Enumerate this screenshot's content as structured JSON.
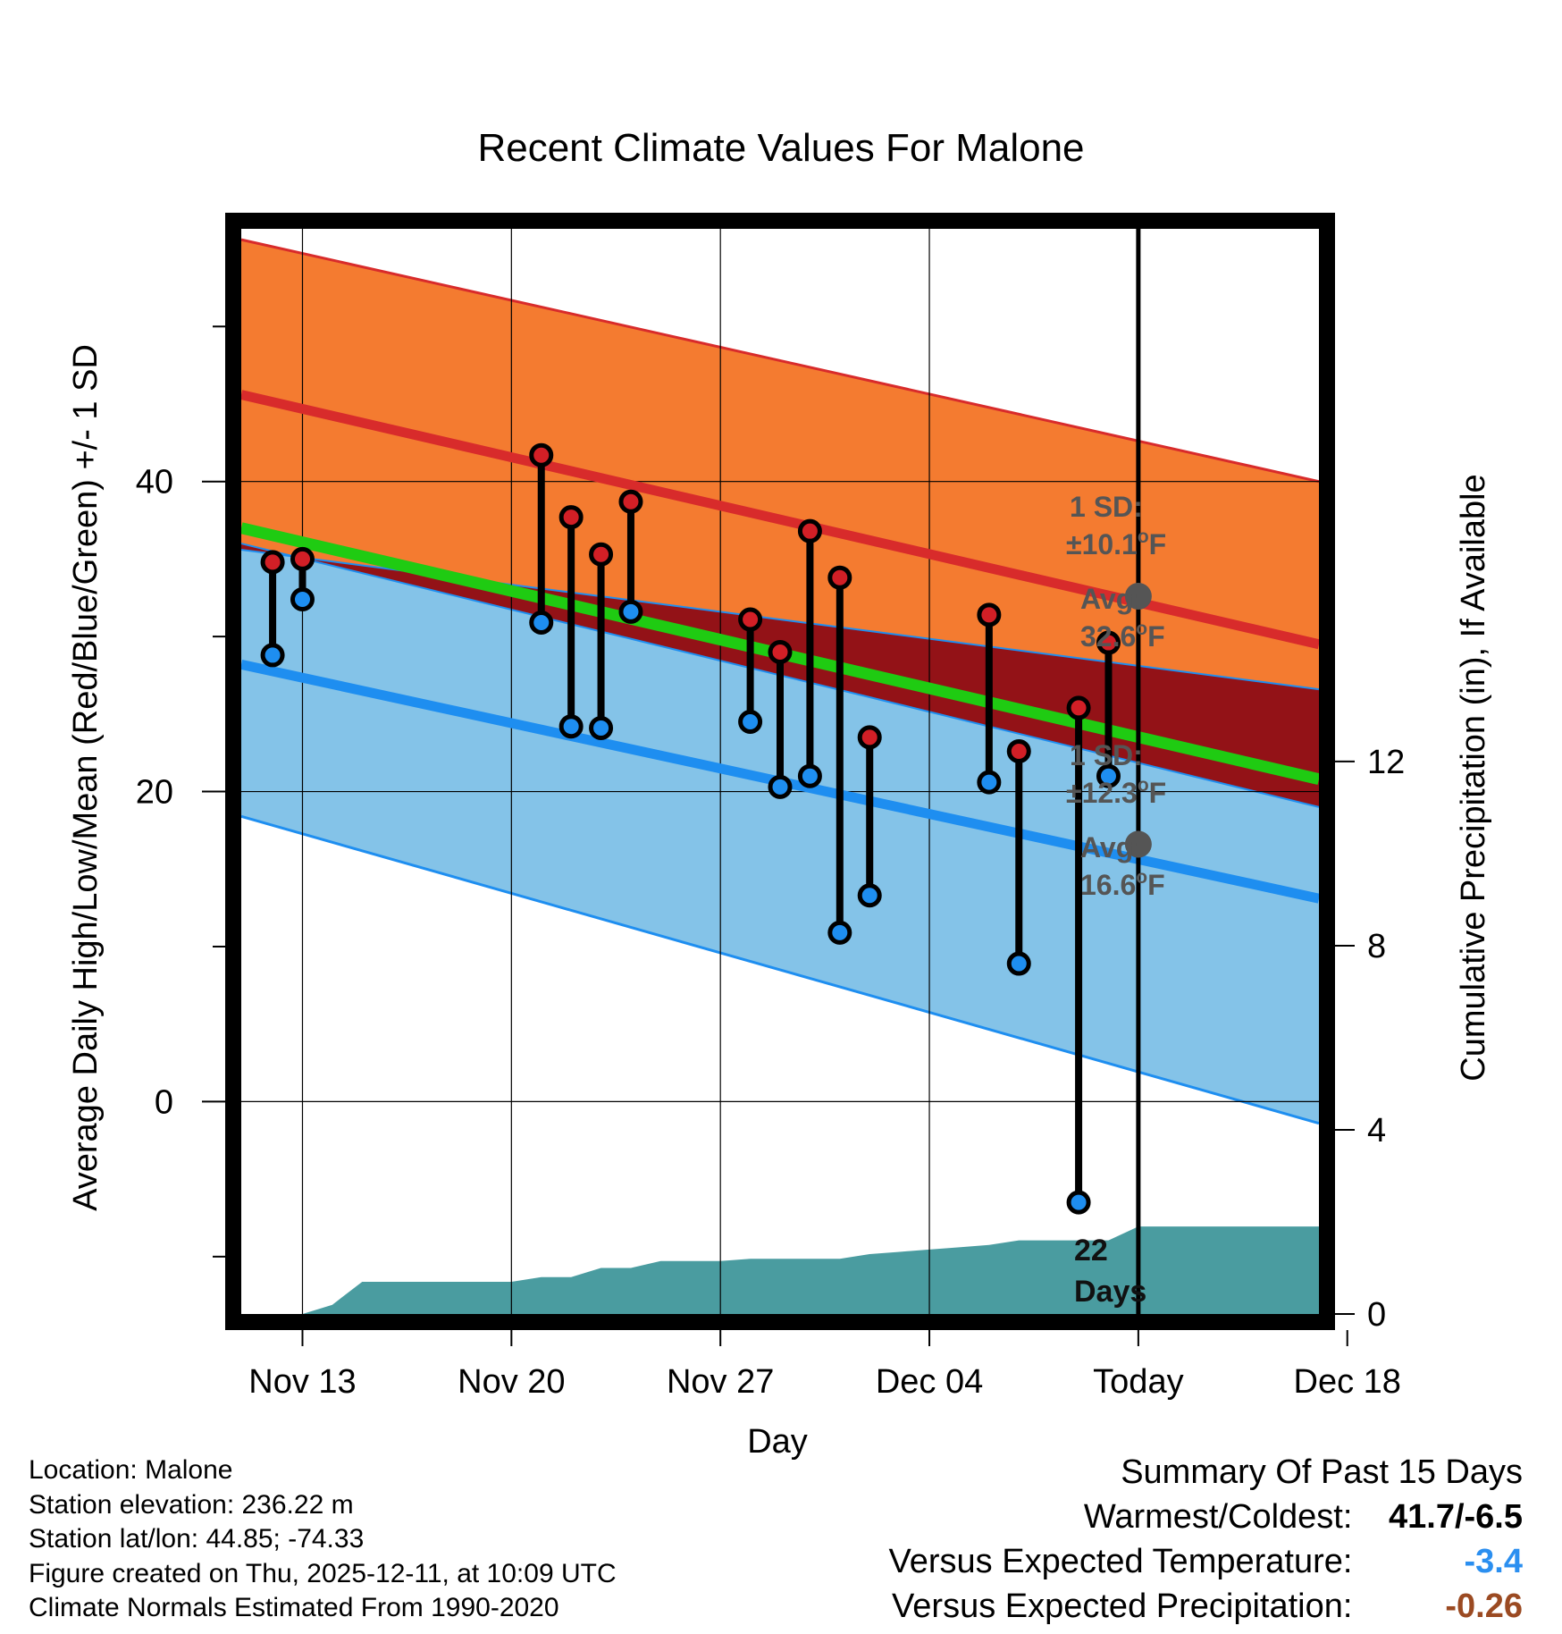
{
  "chart_data": {
    "type": "line",
    "title": "Recent Climate Values For Malone",
    "xlabel": "Day",
    "ylabel": "Average Daily High/Low/Mean (Red/Blue/Green) +/- 1 SD",
    "y2label": "Cumulative Precipitation (in), If Available",
    "xlim": [
      -2.05,
      34.05
    ],
    "ylim": [
      -13.7,
      56.3
    ],
    "y2lim": [
      0,
      23.57
    ],
    "grid": true,
    "x_ticks": [
      {
        "x": 0,
        "label": "Nov 13"
      },
      {
        "x": 7,
        "label": "Nov 20"
      },
      {
        "x": 14,
        "label": "Nov 27"
      },
      {
        "x": 21,
        "label": "Dec 04"
      },
      {
        "x": 28,
        "label": "Today"
      },
      {
        "x": 35,
        "label": "Dec 18"
      }
    ],
    "y_ticks": [
      0,
      20,
      40
    ],
    "y_minor_ticks": [
      -10,
      10,
      30,
      50
    ],
    "y2_ticks": [
      0,
      4,
      8,
      12
    ],
    "today_x": 28,
    "normals": {
      "x": [
        -2.05,
        34.05
      ],
      "high_avg": [
        45.6,
        29.5
      ],
      "high_plus_sd": [
        55.6,
        40.0
      ],
      "high_minus_sd": [
        35.6,
        26.6
      ],
      "mean": [
        37.0,
        20.8
      ],
      "low_avg": [
        28.2,
        13.1
      ],
      "low_plus_sd": [
        36.0,
        19.0
      ],
      "low_minus_sd": [
        18.4,
        -1.4
      ],
      "colors": {
        "high_band": "#f47b30",
        "overlap_band": "#931217",
        "low_band": "#84c3e8",
        "high_line": "#d82b2b",
        "low_line": "#1e8ef0",
        "mean_line": "#1fcb12",
        "precip": "#4a9ca0"
      }
    },
    "observations": [
      {
        "x": -1,
        "high": 34.8,
        "low": 28.8
      },
      {
        "x": 0,
        "high": 35.0,
        "low": 32.4
      },
      {
        "x": 8,
        "high": 41.7,
        "low": 30.9
      },
      {
        "x": 9,
        "high": 37.7,
        "low": 24.2
      },
      {
        "x": 10,
        "high": 35.3,
        "low": 24.1
      },
      {
        "x": 11,
        "high": 38.7,
        "low": 31.6
      },
      {
        "x": 15,
        "high": 31.1,
        "low": 24.5
      },
      {
        "x": 16,
        "high": 29.0,
        "low": 20.3
      },
      {
        "x": 17,
        "high": 36.8,
        "low": 21.0
      },
      {
        "x": 18,
        "high": 33.8,
        "low": 10.9
      },
      {
        "x": 19,
        "high": 23.5,
        "low": 13.3
      },
      {
        "x": 23,
        "high": 31.4,
        "low": 20.6
      },
      {
        "x": 24,
        "high": 22.6,
        "low": 8.9
      },
      {
        "x": 26,
        "high": 25.4,
        "low": -6.5
      },
      {
        "x": 27,
        "high": 29.6,
        "low": 21.0
      }
    ],
    "precipitation": {
      "series_name": "Cumulative Precipitation (in)",
      "x": [
        -2.05,
        0,
        1,
        2,
        7,
        8,
        9,
        10,
        11,
        12,
        13,
        14,
        15,
        16,
        17,
        18,
        19,
        20,
        21,
        22,
        23,
        24,
        25,
        26,
        27,
        28,
        34.05
      ],
      "values": [
        0,
        0,
        0.2,
        0.7,
        0.7,
        0.8,
        0.8,
        1.0,
        1.0,
        1.15,
        1.15,
        1.15,
        1.2,
        1.2,
        1.2,
        1.2,
        1.3,
        1.35,
        1.4,
        1.45,
        1.5,
        1.6,
        1.6,
        1.6,
        1.6,
        1.9,
        1.9
      ]
    },
    "annotations": {
      "high_sd_label": "1 SD:",
      "high_sd_value": "±10.1",
      "high_avg_label": "Avg:",
      "high_avg_value": "32.6",
      "high_avg": 32.6,
      "low_sd_label": "1 SD:",
      "low_sd_value": "±12.3",
      "low_avg_label": "Avg:",
      "low_avg_value": "16.6",
      "low_avg": 16.6,
      "deg_sup": "o",
      "deg_unit": "F",
      "days_line1": "22",
      "days_line2": "Days"
    }
  },
  "info": {
    "location": "Location: Malone",
    "elevation": "Station elevation: 236.22 m",
    "latlon": "Station lat/lon: 44.85; -74.33",
    "created": "Figure created on Thu, 2025-12-11, at 10:09 UTC",
    "normals": "Climate Normals Estimated From 1990-2020"
  },
  "summary": {
    "title": "Summary Of Past 15 Days",
    "warm_label": "Warmest/Coldest:",
    "warm_value": "41.7/-6.5",
    "temp_label": "Versus Expected Temperature:",
    "temp_value": "-3.4",
    "temp_color": "#2b8ff0",
    "precip_label": "Versus Expected Precipitation:",
    "precip_value": "-0.26",
    "precip_color": "#9b4a22"
  }
}
